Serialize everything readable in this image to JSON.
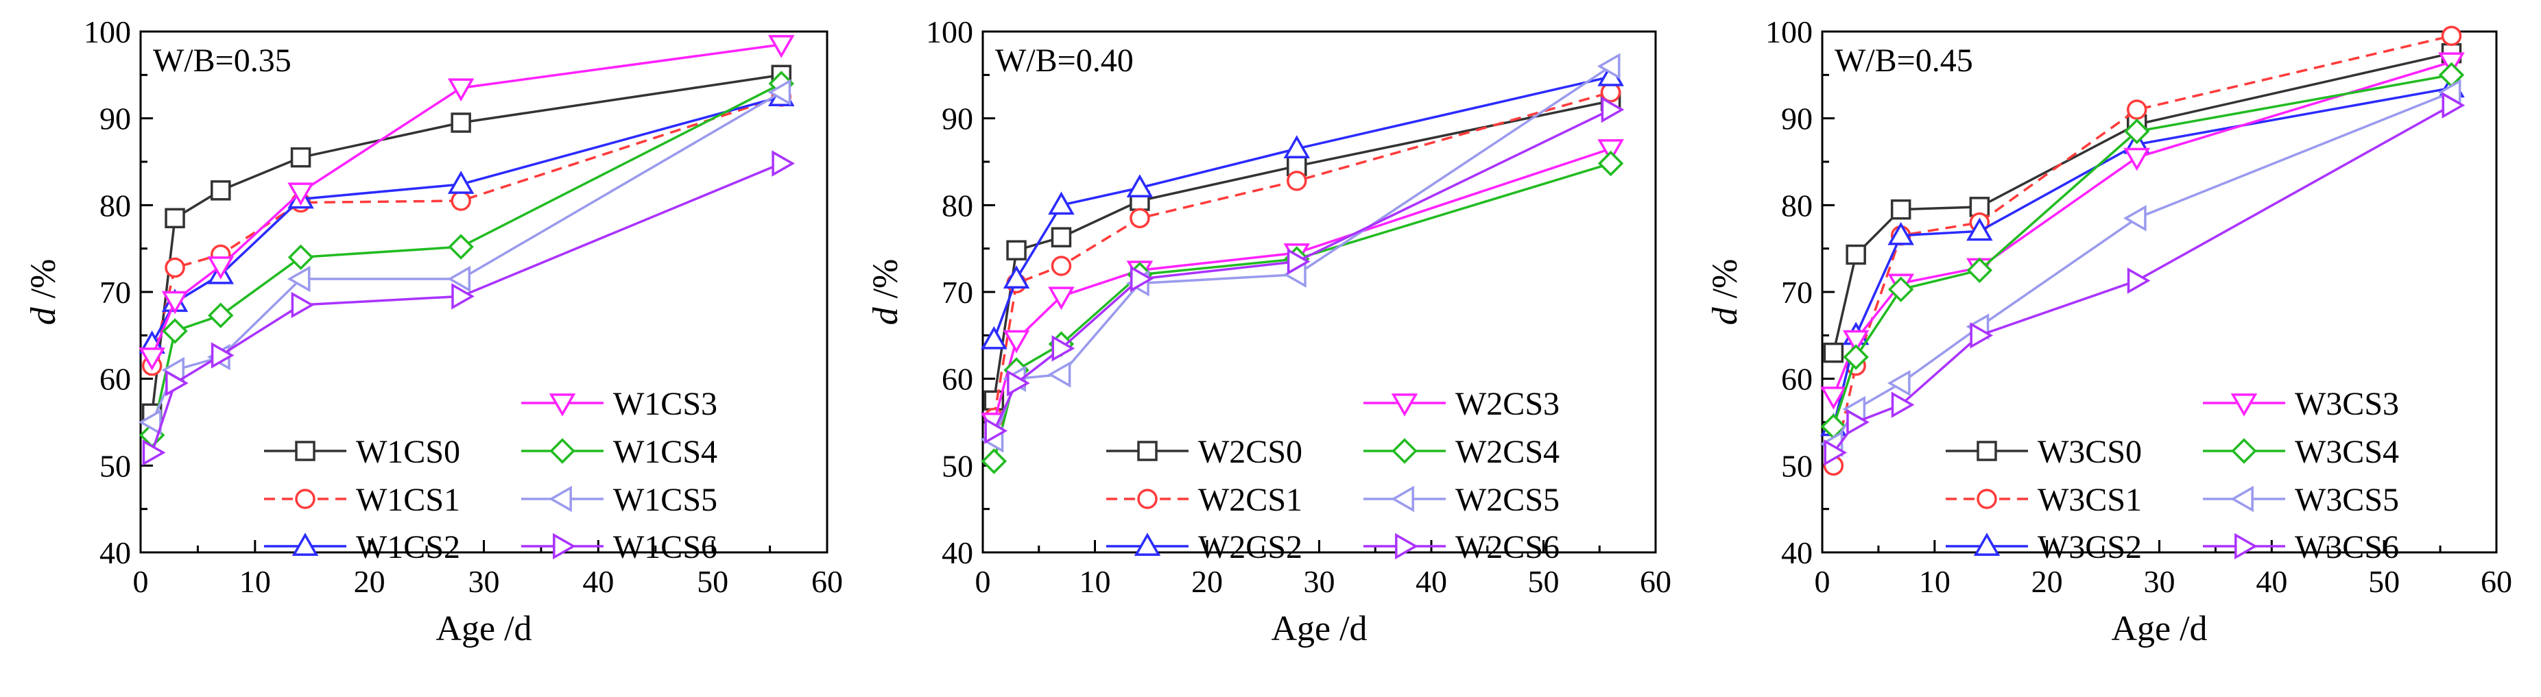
{
  "figure": {
    "panels": 3,
    "description_title": ""
  },
  "chart_data": [
    {
      "type": "line",
      "annotation": "W/B=0.35",
      "xlabel": "Age /d",
      "ylabel_italic": "d",
      "ylabel_rest": " /%",
      "xlim": [
        0,
        60
      ],
      "ylim": [
        40,
        100
      ],
      "xticks": [
        0,
        10,
        20,
        30,
        40,
        50,
        60
      ],
      "yticks": [
        40,
        50,
        60,
        70,
        80,
        90,
        100
      ],
      "grid": false,
      "legend_position": "bottom-right",
      "series": [
        {
          "name": "W1CS0",
          "color": "#333333",
          "marker": "square",
          "dash": "solid",
          "x": [
            1,
            3,
            7,
            14,
            28,
            56
          ],
          "y": [
            56,
            78.5,
            81.7,
            85.5,
            89.5,
            95
          ]
        },
        {
          "name": "W1CS1",
          "color": "#ff3b3b",
          "marker": "circle",
          "dash": "dashed",
          "x": [
            1,
            3,
            7,
            14,
            28,
            56
          ],
          "y": [
            61.5,
            72.8,
            74.3,
            80.3,
            80.5,
            92.5
          ]
        },
        {
          "name": "W1CS2",
          "color": "#2b2bff",
          "marker": "triangle-up",
          "dash": "solid",
          "x": [
            1,
            3,
            7,
            14,
            28,
            56
          ],
          "y": [
            64,
            68.8,
            72,
            80.7,
            82.4,
            92.5
          ]
        },
        {
          "name": "W1CS3",
          "color": "#ff22ff",
          "marker": "triangle-down",
          "dash": "solid",
          "x": [
            1,
            3,
            7,
            14,
            28,
            56
          ],
          "y": [
            62.5,
            69,
            73,
            81.5,
            93.5,
            98.5
          ]
        },
        {
          "name": "W1CS4",
          "color": "#22bb22",
          "marker": "diamond",
          "dash": "solid",
          "x": [
            1,
            3,
            7,
            14,
            28,
            56
          ],
          "y": [
            53.5,
            65.5,
            67.3,
            74,
            75.2,
            94
          ]
        },
        {
          "name": "W1CS5",
          "color": "#9a9aee",
          "marker": "triangle-left",
          "dash": "solid",
          "x": [
            1,
            3,
            7,
            14,
            28,
            56
          ],
          "y": [
            55,
            61,
            62.5,
            71.5,
            71.5,
            93
          ]
        },
        {
          "name": "W1CS6",
          "color": "#aa33ff",
          "marker": "triangle-right",
          "dash": "solid",
          "x": [
            1,
            3,
            7,
            14,
            28,
            56
          ],
          "y": [
            51.5,
            59.5,
            62.7,
            68.5,
            69.5,
            84.8
          ]
        }
      ]
    },
    {
      "type": "line",
      "annotation": "W/B=0.40",
      "xlabel": "Age /d",
      "ylabel_italic": "d",
      "ylabel_rest": " /%",
      "xlim": [
        0,
        60
      ],
      "ylim": [
        40,
        100
      ],
      "xticks": [
        0,
        10,
        20,
        30,
        40,
        50,
        60
      ],
      "yticks": [
        40,
        50,
        60,
        70,
        80,
        90,
        100
      ],
      "grid": false,
      "legend_position": "bottom-right",
      "series": [
        {
          "name": "W2CS0",
          "color": "#333333",
          "marker": "square",
          "dash": "solid",
          "x": [
            1,
            3,
            7,
            14,
            28,
            56
          ],
          "y": [
            57.5,
            74.8,
            76.3,
            80.5,
            84.5,
            92
          ]
        },
        {
          "name": "W2CS1",
          "color": "#ff3b3b",
          "marker": "circle",
          "dash": "dashed",
          "x": [
            1,
            3,
            7,
            14,
            28,
            56
          ],
          "y": [
            55.5,
            71,
            73,
            78.5,
            82.8,
            93
          ]
        },
        {
          "name": "W2CS2",
          "color": "#2b2bff",
          "marker": "triangle-up",
          "dash": "solid",
          "x": [
            1,
            3,
            7,
            14,
            28,
            56
          ],
          "y": [
            64.5,
            71.5,
            80,
            82,
            86.5,
            94.8
          ]
        },
        {
          "name": "W2CS3",
          "color": "#ff22ff",
          "marker": "triangle-down",
          "dash": "solid",
          "x": [
            1,
            3,
            7,
            14,
            28,
            56
          ],
          "y": [
            55,
            64.5,
            69.5,
            72.5,
            74.5,
            86.5
          ]
        },
        {
          "name": "W2CS4",
          "color": "#22bb22",
          "marker": "diamond",
          "dash": "solid",
          "x": [
            1,
            3,
            7,
            14,
            28,
            56
          ],
          "y": [
            50.5,
            61,
            64,
            72,
            73.8,
            84.8
          ]
        },
        {
          "name": "W2CS5",
          "color": "#9a9aee",
          "marker": "triangle-left",
          "dash": "solid",
          "x": [
            1,
            3,
            7,
            14,
            28,
            56
          ],
          "y": [
            53,
            60,
            60.5,
            71,
            72,
            96
          ]
        },
        {
          "name": "W2CS6",
          "color": "#aa33ff",
          "marker": "triangle-right",
          "dash": "solid",
          "x": [
            1,
            3,
            7,
            14,
            28,
            56
          ],
          "y": [
            54,
            59.5,
            63.5,
            71.5,
            73.5,
            91
          ]
        }
      ]
    },
    {
      "type": "line",
      "annotation": "W/B=0.45",
      "xlabel": "Age /d",
      "ylabel_italic": "d",
      "ylabel_rest": " /%",
      "xlim": [
        0,
        60
      ],
      "ylim": [
        40,
        100
      ],
      "xticks": [
        0,
        10,
        20,
        30,
        40,
        50,
        60
      ],
      "yticks": [
        40,
        50,
        60,
        70,
        80,
        90,
        100
      ],
      "grid": false,
      "legend_position": "bottom-right",
      "series": [
        {
          "name": "W3CS0",
          "color": "#333333",
          "marker": "square",
          "dash": "solid",
          "x": [
            1,
            3,
            7,
            14,
            28,
            56
          ],
          "y": [
            63,
            74.3,
            79.5,
            79.8,
            89.3,
            97.5
          ]
        },
        {
          "name": "W3CS1",
          "color": "#ff3b3b",
          "marker": "circle",
          "dash": "dashed",
          "x": [
            1,
            3,
            7,
            14,
            28,
            56
          ],
          "y": [
            50,
            61.5,
            76.5,
            78,
            91,
            99.5
          ]
        },
        {
          "name": "W3CS2",
          "color": "#2b2bff",
          "marker": "triangle-up",
          "dash": "solid",
          "x": [
            1,
            3,
            7,
            14,
            28,
            56
          ],
          "y": [
            54.5,
            65,
            76.5,
            77,
            87,
            93.5
          ]
        },
        {
          "name": "W3CS3",
          "color": "#ff22ff",
          "marker": "triangle-down",
          "dash": "solid",
          "x": [
            1,
            3,
            7,
            14,
            28,
            56
          ],
          "y": [
            58,
            64.5,
            71,
            72.8,
            85.5,
            96.5
          ]
        },
        {
          "name": "W3CS4",
          "color": "#22bb22",
          "marker": "diamond",
          "dash": "solid",
          "x": [
            1,
            3,
            7,
            14,
            28,
            56
          ],
          "y": [
            54.5,
            62.5,
            70.3,
            72.5,
            88.5,
            95
          ]
        },
        {
          "name": "W3CS5",
          "color": "#9a9aee",
          "marker": "triangle-left",
          "dash": "solid",
          "x": [
            1,
            3,
            7,
            14,
            28,
            56
          ],
          "y": [
            52.5,
            56.5,
            59.5,
            66,
            78.5,
            93
          ]
        },
        {
          "name": "W3CS6",
          "color": "#aa33ff",
          "marker": "triangle-right",
          "dash": "solid",
          "x": [
            1,
            3,
            7,
            14,
            28,
            56
          ],
          "y": [
            51.5,
            55,
            57,
            65,
            71.3,
            91.5
          ]
        }
      ]
    }
  ]
}
